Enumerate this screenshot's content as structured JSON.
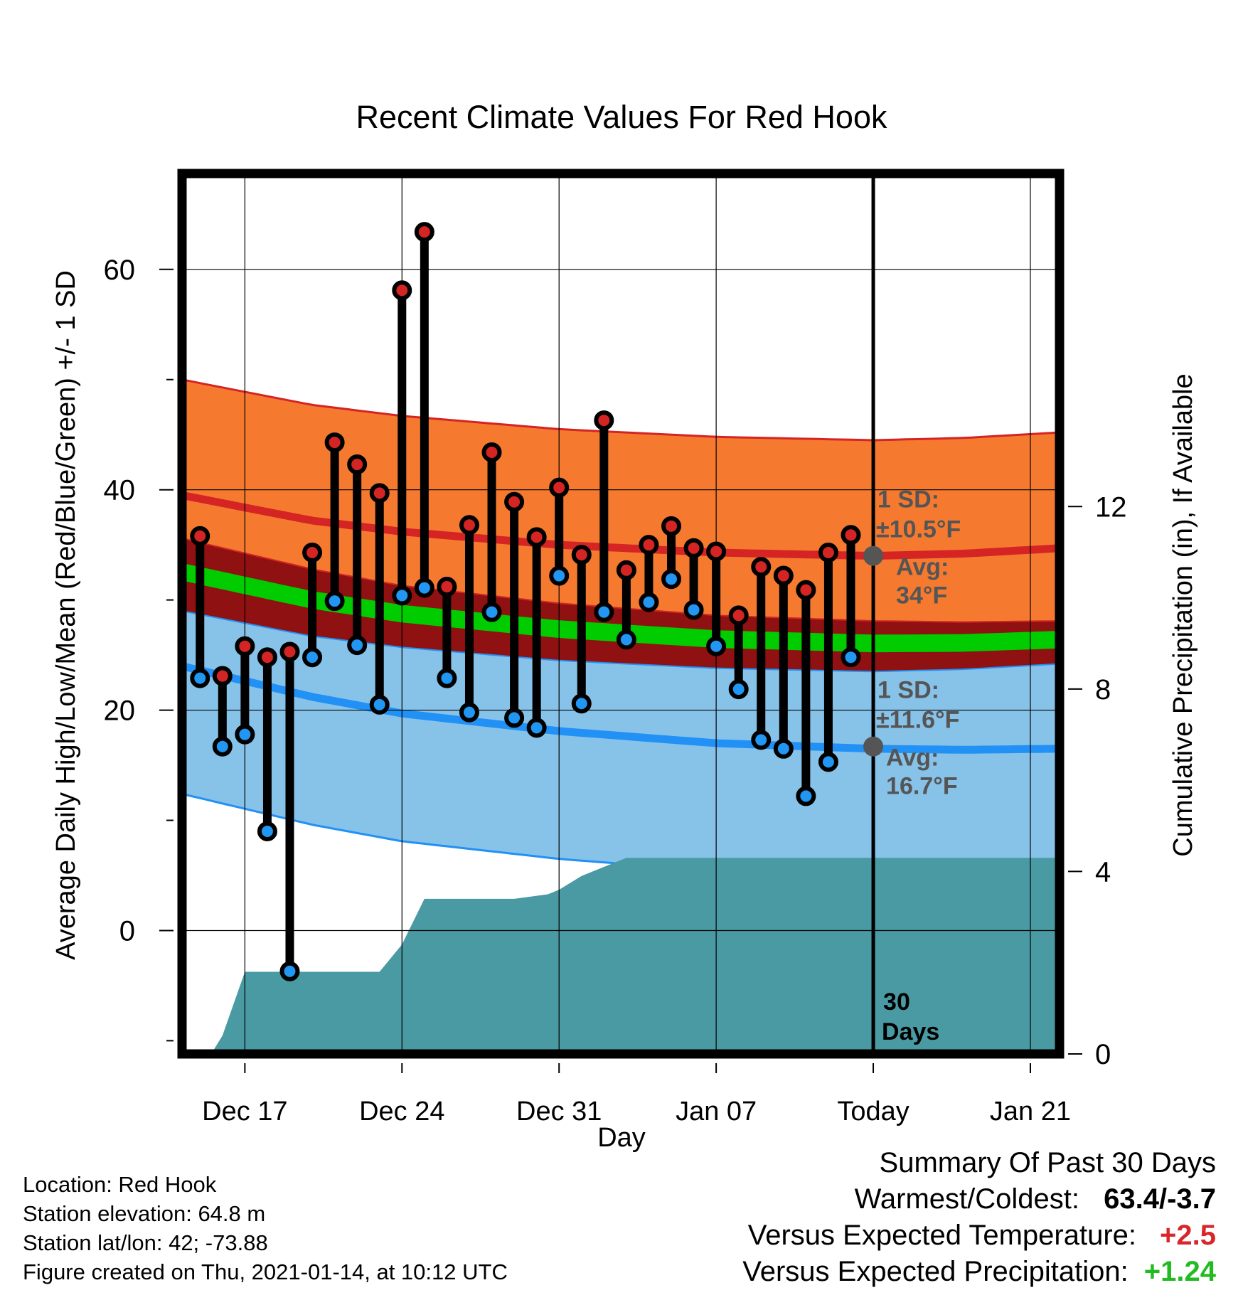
{
  "chart_data": {
    "type": "line",
    "title": "Recent Climate Values For Red Hook",
    "xlabel": "Day",
    "ylabel": "Average Daily High/Low/Mean (Red/Blue/Green) +/- 1 SD",
    "y2label": "Cumulative Precipitation (in), If Available",
    "ylim": [
      -11.2,
      68.7
    ],
    "y2lim": [
      0,
      19.3
    ],
    "xlim": [
      -2.8,
      36.3
    ],
    "x_ticks": [
      {
        "day": 0,
        "label": "Dec 17"
      },
      {
        "day": 7,
        "label": "Dec 24"
      },
      {
        "day": 14,
        "label": "Dec 31"
      },
      {
        "day": 21,
        "label": "Jan 07"
      },
      {
        "day": 28,
        "label": "Today"
      },
      {
        "day": 35,
        "label": "Jan 21"
      }
    ],
    "y_ticks": [
      0,
      20,
      40,
      60
    ],
    "y2_ticks": [
      0,
      4,
      8,
      12
    ],
    "today_day": 28,
    "window_label": "30 Days",
    "high_labels": [
      "1 SD:",
      "±10.5°F",
      "Avg:",
      "34°F"
    ],
    "low_labels": [
      "1 SD:",
      "±11.6°F",
      "Avg:",
      "16.7°F"
    ],
    "today_avg_high": 34,
    "today_avg_low": 16.7,
    "climatology": {
      "x": [
        -2.8,
        3,
        7,
        14,
        21,
        28,
        32,
        36.3
      ],
      "high_mean": [
        39.5,
        37.2,
        36.2,
        35.0,
        34.3,
        34.0,
        34.2,
        34.7
      ],
      "high_sd": 10.5,
      "low_mean": [
        24.0,
        21.2,
        19.7,
        18.1,
        17.0,
        16.5,
        16.4,
        16.5
      ],
      "low_sd": 11.6
    },
    "observed": {
      "days": [
        -2,
        -1,
        0,
        1,
        2,
        3,
        4,
        5,
        6,
        7,
        8,
        9,
        10,
        11,
        12,
        13,
        14,
        15,
        16,
        17,
        18,
        19,
        20,
        21,
        22,
        23,
        24,
        25,
        26,
        27
      ],
      "highs": [
        35.8,
        23.1,
        25.8,
        24.8,
        25.3,
        34.3,
        44.3,
        42.3,
        39.7,
        58.1,
        63.4,
        31.2,
        36.8,
        43.4,
        38.9,
        35.7,
        40.2,
        34.1,
        46.3,
        32.7,
        35.0,
        36.7,
        34.7,
        34.4,
        28.6,
        33.0,
        32.2,
        30.9,
        34.3,
        35.9
      ],
      "lows": [
        22.9,
        16.7,
        17.8,
        9.0,
        -3.7,
        24.8,
        29.9,
        25.9,
        20.5,
        30.4,
        31.1,
        22.9,
        19.8,
        28.9,
        19.3,
        18.4,
        32.2,
        20.6,
        28.9,
        26.4,
        29.8,
        31.9,
        29.1,
        25.8,
        21.9,
        17.3,
        16.5,
        12.2,
        15.3,
        24.8
      ]
    },
    "precipitation": {
      "x": [
        -1.5,
        -1.0,
        0,
        6.0,
        7.0,
        8.0,
        12.0,
        13.5,
        14.0,
        15.0,
        16.5,
        17.0,
        36.3
      ],
      "y": [
        0,
        0.4,
        1.8,
        1.8,
        2.4,
        3.4,
        3.4,
        3.5,
        3.6,
        3.9,
        4.2,
        4.3,
        4.3
      ]
    },
    "colors": {
      "high_band": "#f57a30",
      "high_line": "#d42424",
      "low_band": "#87c2e8",
      "low_line": "#2191f5",
      "mean_band": "#8f1111",
      "mean_green": "#00cc00",
      "precip": "#4a9aa3",
      "high_marker": "#d42424",
      "low_marker": "#2196f3",
      "label_gray": "#555555"
    }
  },
  "info": {
    "location": "Location: Red Hook",
    "elevation": "Station elevation: 64.8 m",
    "latlon": "Station lat/lon: 42; -73.88",
    "created": "Figure created on Thu, 2021-01-14, at 10:12 UTC"
  },
  "summary": {
    "title": "Summary Of Past 30 Days",
    "warm_cold_label": "Warmest/Coldest:",
    "warm_cold_value": "63.4/-3.7",
    "temp_label": "Versus Expected Temperature:",
    "temp_value": "+2.5",
    "precip_label": "Versus Expected Precipitation:",
    "precip_value": "+1.24"
  }
}
